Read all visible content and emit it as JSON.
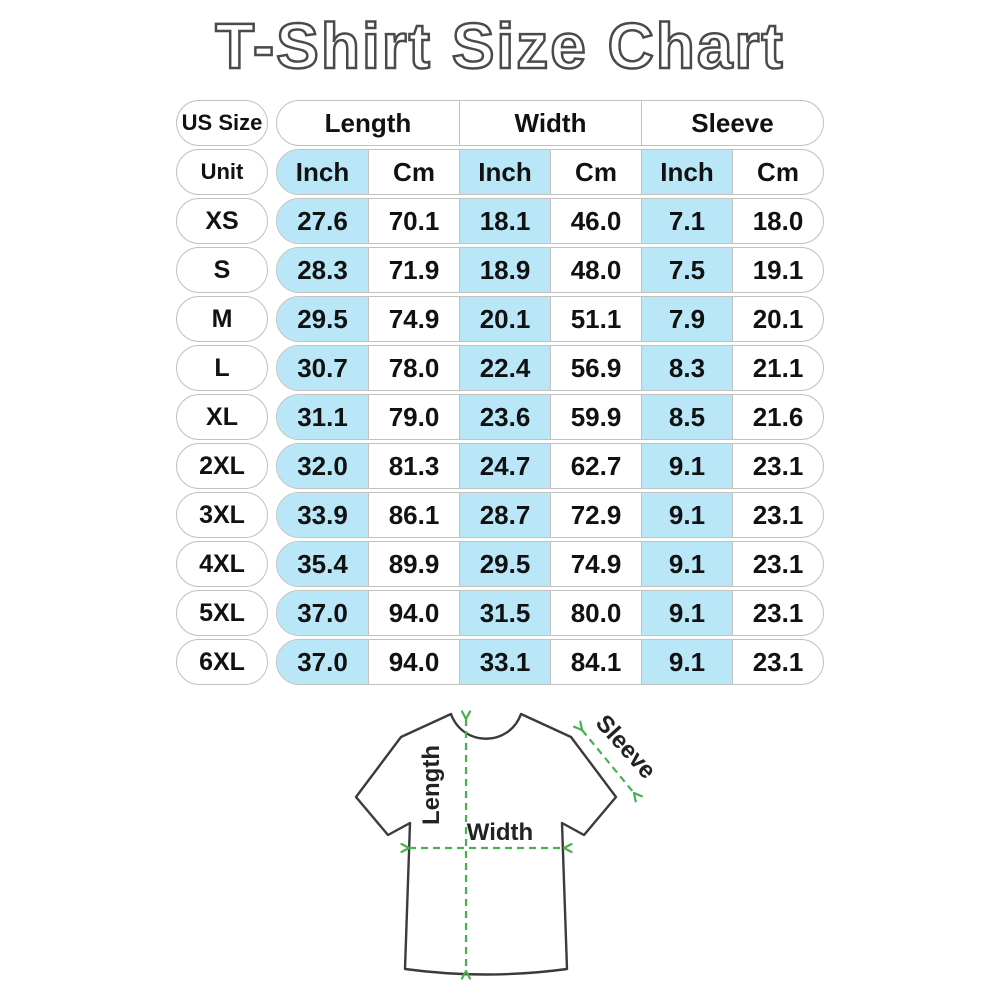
{
  "title": "T-Shirt Size Chart",
  "table": {
    "corner_label": "US Size",
    "unit_label": "Unit",
    "groups": [
      {
        "label": "Length"
      },
      {
        "label": "Width"
      },
      {
        "label": "Sleeve"
      }
    ],
    "unit_headers": [
      "Inch",
      "Cm",
      "Inch",
      "Cm",
      "Inch",
      "Cm"
    ],
    "rows": [
      {
        "size": "XS",
        "values": [
          "27.6",
          "70.1",
          "18.1",
          "46.0",
          "7.1",
          "18.0"
        ]
      },
      {
        "size": "S",
        "values": [
          "28.3",
          "71.9",
          "18.9",
          "48.0",
          "7.5",
          "19.1"
        ]
      },
      {
        "size": "M",
        "values": [
          "29.5",
          "74.9",
          "20.1",
          "51.1",
          "7.9",
          "20.1"
        ]
      },
      {
        "size": "L",
        "values": [
          "30.7",
          "78.0",
          "22.4",
          "56.9",
          "8.3",
          "21.1"
        ]
      },
      {
        "size": "XL",
        "values": [
          "31.1",
          "79.0",
          "23.6",
          "59.9",
          "8.5",
          "21.6"
        ]
      },
      {
        "size": "2XL",
        "values": [
          "32.0",
          "81.3",
          "24.7",
          "62.7",
          "9.1",
          "23.1"
        ]
      },
      {
        "size": "3XL",
        "values": [
          "33.9",
          "86.1",
          "28.7",
          "72.9",
          "9.1",
          "23.1"
        ]
      },
      {
        "size": "4XL",
        "values": [
          "35.4",
          "89.9",
          "29.5",
          "74.9",
          "9.1",
          "23.1"
        ]
      },
      {
        "size": "5XL",
        "values": [
          "37.0",
          "94.0",
          "31.5",
          "80.0",
          "9.1",
          "23.1"
        ]
      },
      {
        "size": "6XL",
        "values": [
          "37.0",
          "94.0",
          "33.1",
          "84.1",
          "9.1",
          "23.1"
        ]
      }
    ]
  },
  "diagram": {
    "length_label": "Length",
    "width_label": "Width",
    "sleeve_label": "Sleeve"
  },
  "colors": {
    "highlight_blue": "#b9e7f8",
    "arrow_green": "#46b14d",
    "pill_border": "#c2c2c2",
    "title_outline": "#4a4a4a",
    "shirt_outline": "#3b3b3b",
    "text": "#111111"
  }
}
